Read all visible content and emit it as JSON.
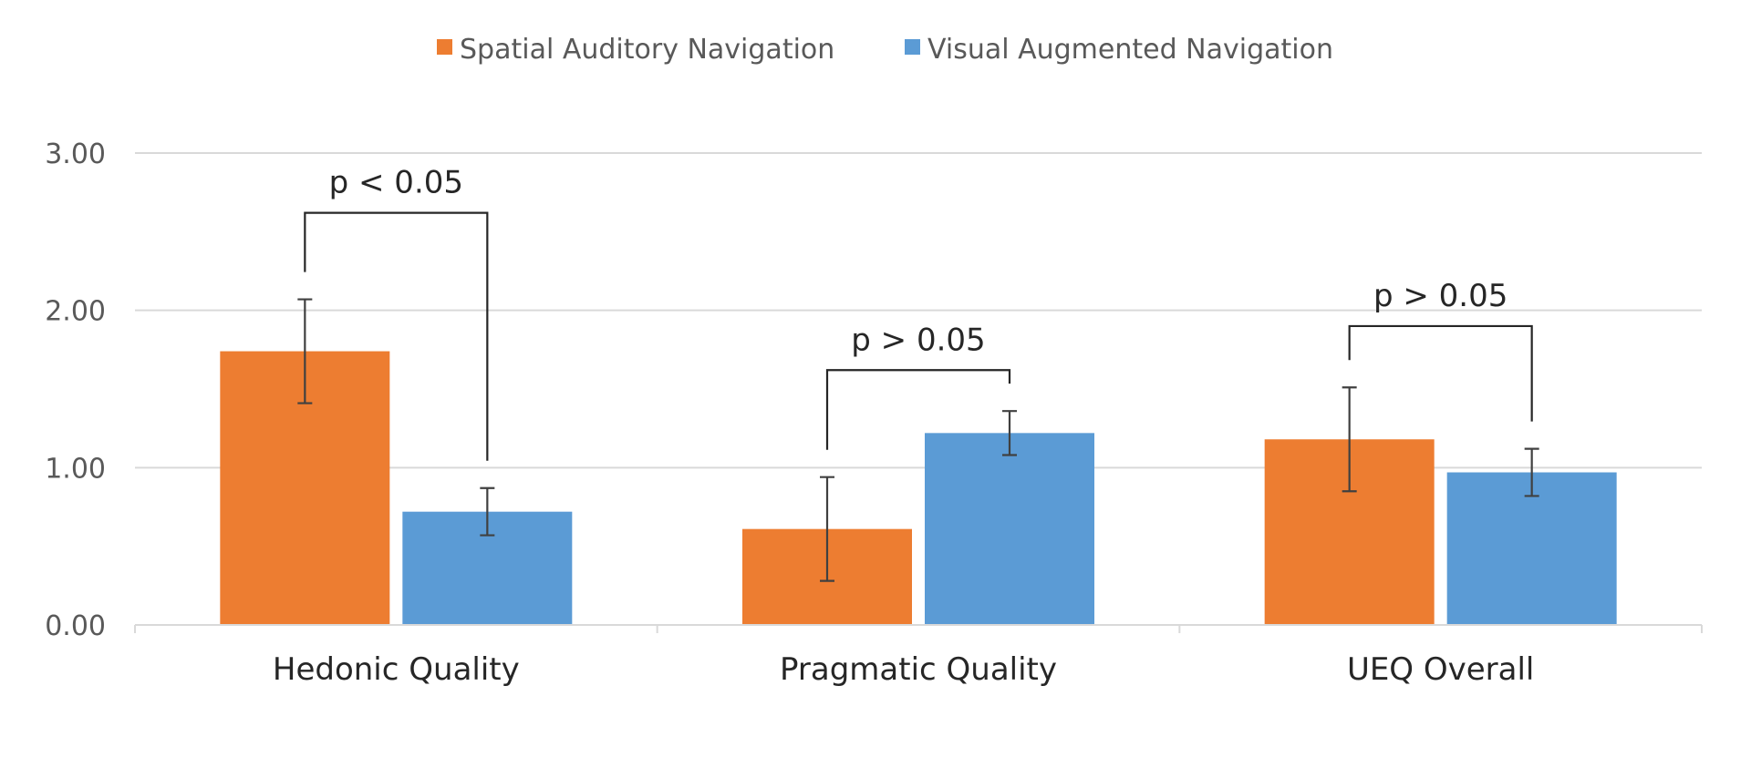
{
  "chart_data": {
    "type": "bar",
    "title": "",
    "xlabel": "",
    "ylabel": "",
    "ylim": [
      0,
      3
    ],
    "yticks": [
      0,
      1,
      2,
      3
    ],
    "ytick_labels": [
      "0.00",
      "1.00",
      "2.00",
      "3.00"
    ],
    "grid": true,
    "legend_position": "top-center",
    "categories": [
      "Hedonic Quality",
      "Pragmatic Quality",
      "UEQ Overall"
    ],
    "series": [
      {
        "name": "Spatial Auditory Navigation",
        "color": "#ed7d31",
        "values": [
          1.74,
          0.61,
          1.18
        ],
        "error": [
          0.33,
          0.33,
          0.33
        ]
      },
      {
        "name": "Visual Augmented Navigation",
        "color": "#5b9bd5",
        "values": [
          0.72,
          1.22,
          0.97
        ],
        "error": [
          0.15,
          0.14,
          0.15
        ]
      }
    ],
    "annotations": [
      {
        "category_index": 0,
        "label": "p < 0.05",
        "bracket_top": 2.62
      },
      {
        "category_index": 1,
        "label": "p > 0.05",
        "bracket_top": 1.62
      },
      {
        "category_index": 2,
        "label": "p > 0.05",
        "bracket_top": 1.9
      }
    ]
  }
}
